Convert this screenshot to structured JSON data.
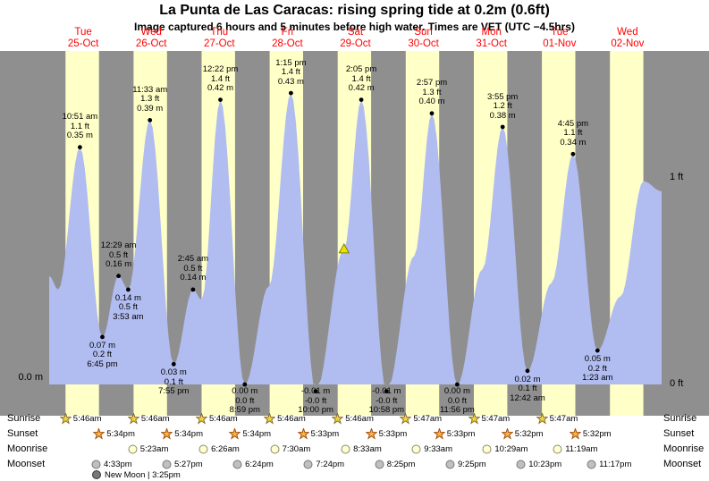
{
  "title": "La Punta de Las Caracas: rising  spring tide at 0.2m (0.6ft)",
  "subtitle": "Image captured 6 hours and 5 minutes before high water. Times are VET (UTC −4.5hrs)",
  "colors": {
    "night_band": "#8f8f8f",
    "day_band": "#ffffc8",
    "tide_fill": "#b1bcf0",
    "day_label_red": "#ff0000",
    "marker_yellow": "#e8e400"
  },
  "axis": {
    "left_zero_label": "0.0 m",
    "right_one_ft_label": "1 ft",
    "right_zero_ft_label": "0 ft"
  },
  "days": [
    {
      "name": "Tue",
      "date": "25-Oct"
    },
    {
      "name": "Wed",
      "date": "26-Oct"
    },
    {
      "name": "Thu",
      "date": "27-Oct"
    },
    {
      "name": "Fri",
      "date": "28-Oct"
    },
    {
      "name": "Sat",
      "date": "29-Oct"
    },
    {
      "name": "Sun",
      "date": "30-Oct"
    },
    {
      "name": "Mon",
      "date": "31-Oct"
    },
    {
      "name": "Tue",
      "date": "01-Nov"
    },
    {
      "name": "Wed",
      "date": "02-Nov"
    }
  ],
  "chart_data": {
    "type": "area",
    "title": "Tide height at La Punta de Las Caracas",
    "x_unit": "hours since 25-Oct 00:00, 9 days shown",
    "y_unit": "m",
    "x_range": [
      0,
      216
    ],
    "y_range": [
      -0.05,
      0.49
    ],
    "extremes": [
      {
        "t": 10.85,
        "h": 0.35,
        "type": "high",
        "lines": [
          "10:51 am",
          "1.1 ft",
          "0.35 m"
        ]
      },
      {
        "t": 18.75,
        "h": 0.07,
        "type": "low",
        "lines": [
          "0.07 m",
          "0.2 ft",
          "6:45 pm"
        ]
      },
      {
        "t": 24.48,
        "h": 0.16,
        "type": "high",
        "lines": [
          "12:29 am",
          "0.5 ft",
          "0.16 m"
        ]
      },
      {
        "t": 27.88,
        "h": 0.14,
        "type": "low",
        "lines": [
          "0.14 m",
          "0.5 ft",
          "3:53 am"
        ]
      },
      {
        "t": 35.55,
        "h": 0.39,
        "type": "high",
        "lines": [
          "11:33 am",
          "1.3 ft",
          "0.39 m"
        ]
      },
      {
        "t": 43.92,
        "h": 0.03,
        "type": "low",
        "lines": [
          "0.03 m",
          "0.1 ft",
          "7:55 pm"
        ]
      },
      {
        "t": 50.75,
        "h": 0.14,
        "type": "high",
        "lines": [
          "2:45 am",
          "0.5 ft",
          "0.14 m"
        ]
      },
      {
        "t": 60.37,
        "h": 0.42,
        "type": "high",
        "lines": [
          "12:22 pm",
          "1.4 ft",
          "0.42 m"
        ]
      },
      {
        "t": 68.98,
        "h": 0.0,
        "type": "low",
        "lines": [
          "0.00 m",
          "0.0 ft",
          "8:59 pm"
        ]
      },
      {
        "t": 85.25,
        "h": 0.43,
        "type": "high",
        "lines": [
          "1:15 pm",
          "1.4 ft",
          "0.43 m"
        ]
      },
      {
        "t": 94.0,
        "h": -0.01,
        "type": "low",
        "lines": [
          "-0.01 m",
          "-0.0 ft",
          "10:00 pm"
        ]
      },
      {
        "t": 110.08,
        "h": 0.42,
        "type": "high",
        "lines": [
          "2:05 pm",
          "1.4 ft",
          "0.42 m"
        ]
      },
      {
        "t": 118.97,
        "h": -0.01,
        "type": "low",
        "lines": [
          "-0.01 m",
          "-0.0 ft",
          "10:58 pm"
        ]
      },
      {
        "t": 134.95,
        "h": 0.4,
        "type": "high",
        "lines": [
          "2:57 pm",
          "1.3 ft",
          "0.40 m"
        ]
      },
      {
        "t": 143.93,
        "h": 0.0,
        "type": "low",
        "lines": [
          "0.00 m",
          "0.0 ft",
          "11:56 pm"
        ]
      },
      {
        "t": 159.92,
        "h": 0.38,
        "type": "high",
        "lines": [
          "3:55 pm",
          "1.2 ft",
          "0.38 m"
        ]
      },
      {
        "t": 168.7,
        "h": 0.02,
        "type": "low",
        "lines": [
          "0.02 m",
          "0.1 ft",
          "12:42 am"
        ]
      },
      {
        "t": 184.75,
        "h": 0.34,
        "type": "high",
        "lines": [
          "4:45 pm",
          "1.1 ft",
          "0.34 m"
        ]
      },
      {
        "t": 193.38,
        "h": 0.05,
        "type": "low",
        "lines": [
          "0.05 m",
          "0.2 ft",
          "1:23 am"
        ]
      }
    ],
    "curve_anchors": [
      [
        0,
        0.16
      ],
      [
        3.2,
        0.14
      ],
      [
        10.85,
        0.35
      ],
      [
        18.75,
        0.07
      ],
      [
        24.48,
        0.16
      ],
      [
        27.88,
        0.14
      ],
      [
        35.55,
        0.39
      ],
      [
        43.92,
        0.03
      ],
      [
        50.75,
        0.14
      ],
      [
        53.8,
        0.125
      ],
      [
        60.37,
        0.42
      ],
      [
        68.98,
        0.0
      ],
      [
        77.5,
        0.145
      ],
      [
        85.25,
        0.43
      ],
      [
        94.0,
        -0.01
      ],
      [
        104.0,
        0.2
      ],
      [
        110.08,
        0.42
      ],
      [
        118.97,
        -0.01
      ],
      [
        128.8,
        0.19
      ],
      [
        134.95,
        0.4
      ],
      [
        143.93,
        0.0
      ],
      [
        152.8,
        0.17
      ],
      [
        159.92,
        0.38
      ],
      [
        168.7,
        0.02
      ],
      [
        177.2,
        0.15
      ],
      [
        184.75,
        0.34
      ],
      [
        193.38,
        0.05
      ],
      [
        201.5,
        0.13
      ],
      [
        209.6,
        0.3
      ],
      [
        216,
        0.285
      ]
    ],
    "current_marker": {
      "t": 104.0,
      "h": 0.2,
      "shape": "triangle",
      "meaning": "capture time, 6h5m before high water"
    }
  },
  "astro": {
    "row_labels": [
      "Sunrise",
      "Sunset",
      "Moonrise",
      "Moonset"
    ],
    "sunrise": [
      {
        "day": 0,
        "time": "5:46am"
      },
      {
        "day": 1,
        "time": "5:46am"
      },
      {
        "day": 2,
        "time": "5:46am"
      },
      {
        "day": 3,
        "time": "5:46am"
      },
      {
        "day": 4,
        "time": "5:46am"
      },
      {
        "day": 5,
        "time": "5:47am"
      },
      {
        "day": 6,
        "time": "5:47am"
      },
      {
        "day": 7,
        "time": "5:47am"
      }
    ],
    "sunset": [
      {
        "day": 0,
        "time": "5:34pm"
      },
      {
        "day": 1,
        "time": "5:34pm"
      },
      {
        "day": 2,
        "time": "5:34pm"
      },
      {
        "day": 3,
        "time": "5:33pm"
      },
      {
        "day": 4,
        "time": "5:33pm"
      },
      {
        "day": 5,
        "time": "5:33pm"
      },
      {
        "day": 6,
        "time": "5:32pm"
      },
      {
        "day": 7,
        "time": "5:32pm"
      }
    ],
    "moonrise": [
      {
        "day": 1,
        "time": "5:23am"
      },
      {
        "day": 2,
        "time": "6:26am"
      },
      {
        "day": 3,
        "time": "7:30am"
      },
      {
        "day": 4,
        "time": "8:33am"
      },
      {
        "day": 5,
        "time": "9:33am"
      },
      {
        "day": 6,
        "time": "10:29am"
      },
      {
        "day": 7,
        "time": "11:19am"
      }
    ],
    "moonset": [
      {
        "day": 0,
        "time": "4:33pm"
      },
      {
        "day": 1,
        "time": "5:27pm"
      },
      {
        "day": 2,
        "time": "6:24pm"
      },
      {
        "day": 3,
        "time": "7:24pm"
      },
      {
        "day": 4,
        "time": "8:25pm"
      },
      {
        "day": 5,
        "time": "9:25pm"
      },
      {
        "day": 6,
        "time": "10:23pm"
      },
      {
        "day": 7,
        "time": "11:17pm"
      }
    ],
    "new_moon": "New Moon | 3:25pm"
  }
}
